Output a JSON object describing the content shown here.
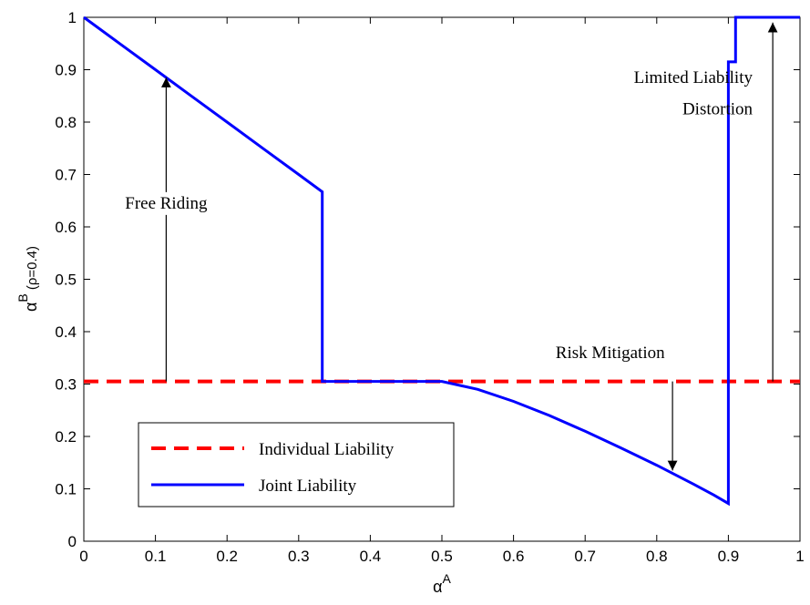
{
  "chart_data": {
    "type": "line",
    "xlabel": "α",
    "xlabel_sup": "A",
    "ylabel": "α",
    "ylabel_sup": "B",
    "ylabel_suffix": " (ρ=0.4)",
    "xlim": [
      0,
      1
    ],
    "ylim": [
      0,
      1
    ],
    "xticks": [
      "0",
      "0.1",
      "0.2",
      "0.3",
      "0.4",
      "0.5",
      "0.6",
      "0.7",
      "0.8",
      "0.9",
      "1"
    ],
    "yticks": [
      "0",
      "0.1",
      "0.2",
      "0.3",
      "0.4",
      "0.5",
      "0.6",
      "0.7",
      "0.8",
      "0.9",
      "1"
    ],
    "grid": false,
    "legend_position": "bottom-left",
    "series": [
      {
        "name": "Individual Liability",
        "color": "#ff0000",
        "style": "dashed",
        "x": [
          0,
          1
        ],
        "y": [
          0.305,
          0.305
        ]
      },
      {
        "name": "Joint Liability",
        "color": "#0000ff",
        "style": "solid",
        "x": [
          0,
          0.05,
          0.1,
          0.15,
          0.2,
          0.25,
          0.3,
          0.333,
          0.333,
          0.4,
          0.45,
          0.5,
          0.55,
          0.6,
          0.65,
          0.7,
          0.75,
          0.8,
          0.85,
          0.88,
          0.9,
          0.9,
          0.91,
          0.91,
          1
        ],
        "y": [
          1,
          0.95,
          0.9,
          0.85,
          0.8,
          0.75,
          0.7,
          0.667,
          0.305,
          0.305,
          0.305,
          0.305,
          0.29,
          0.267,
          0.24,
          0.21,
          0.178,
          0.145,
          0.11,
          0.088,
          0.072,
          0.915,
          0.915,
          1,
          1
        ]
      }
    ],
    "annotations": [
      {
        "text": "Free Riding",
        "label_x": 0.115,
        "label_y": 0.635,
        "arrow_from": [
          0.115,
          0.305
        ],
        "arrow_to": [
          0.115,
          0.885
        ]
      },
      {
        "text": "Risk Mitigation",
        "label_x": 0.735,
        "label_y": 0.35,
        "arrow_from": [
          0.822,
          0.305
        ],
        "arrow_to": [
          0.822,
          0.135
        ]
      },
      {
        "text": "Limited Liability",
        "label_x": 0.83,
        "label_y": 0.875,
        "arrow_from": [
          0.962,
          0.305
        ],
        "arrow_to": [
          0.962,
          0.99
        ]
      },
      {
        "text": "Distortion",
        "label_x": 0.83,
        "label_y": 0.815
      }
    ]
  }
}
